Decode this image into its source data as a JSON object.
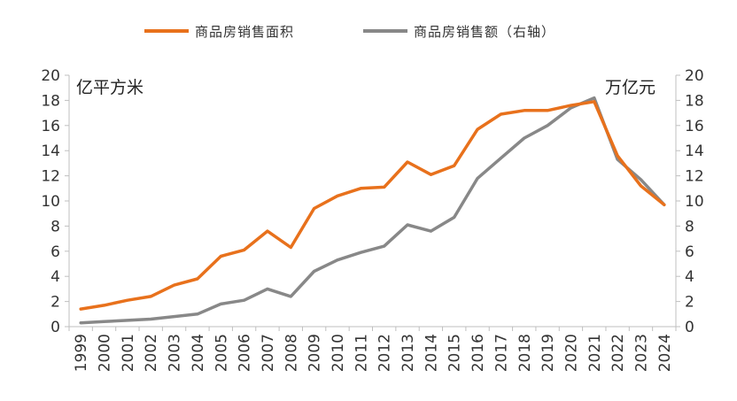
{
  "chart_data": {
    "type": "line",
    "categories": [
      "1999",
      "2000",
      "2001",
      "2002",
      "2003",
      "2004",
      "2005",
      "2006",
      "2007",
      "2008",
      "2009",
      "2010",
      "2011",
      "2012",
      "2013",
      "2014",
      "2015",
      "2016",
      "2017",
      "2018",
      "2019",
      "2020",
      "2021",
      "2022",
      "2023",
      "2024"
    ],
    "series": [
      {
        "name": "商品房销售面积",
        "axis": "left",
        "color": "#e8711c",
        "values": [
          1.4,
          1.7,
          2.1,
          2.4,
          3.3,
          3.8,
          5.6,
          6.1,
          7.6,
          6.3,
          9.4,
          10.4,
          11.0,
          11.1,
          13.1,
          12.1,
          12.8,
          15.7,
          16.9,
          17.2,
          17.2,
          17.6,
          17.9,
          13.6,
          11.2,
          9.7
        ]
      },
      {
        "name": "商品房销售额（右轴）",
        "axis": "right",
        "color": "#888888",
        "values": [
          0.3,
          0.4,
          0.5,
          0.6,
          0.8,
          1.0,
          1.8,
          2.1,
          3.0,
          2.4,
          4.4,
          5.3,
          5.9,
          6.4,
          8.1,
          7.6,
          8.7,
          11.8,
          13.4,
          15.0,
          16.0,
          17.4,
          18.2,
          13.3,
          11.7,
          9.7
        ]
      }
    ],
    "y_left": {
      "label": "亿平方米",
      "ylim": [
        0,
        20
      ],
      "ticks": [
        "0",
        "2",
        "4",
        "6",
        "8",
        "10",
        "12",
        "14",
        "16",
        "18",
        "20"
      ]
    },
    "y_right": {
      "label": "万亿元",
      "ylim": [
        0,
        20
      ],
      "ticks": [
        "0",
        "2",
        "4",
        "6",
        "8",
        "10",
        "12",
        "14",
        "16",
        "18",
        "20"
      ]
    },
    "grid": false,
    "legend_position": "top-center"
  }
}
